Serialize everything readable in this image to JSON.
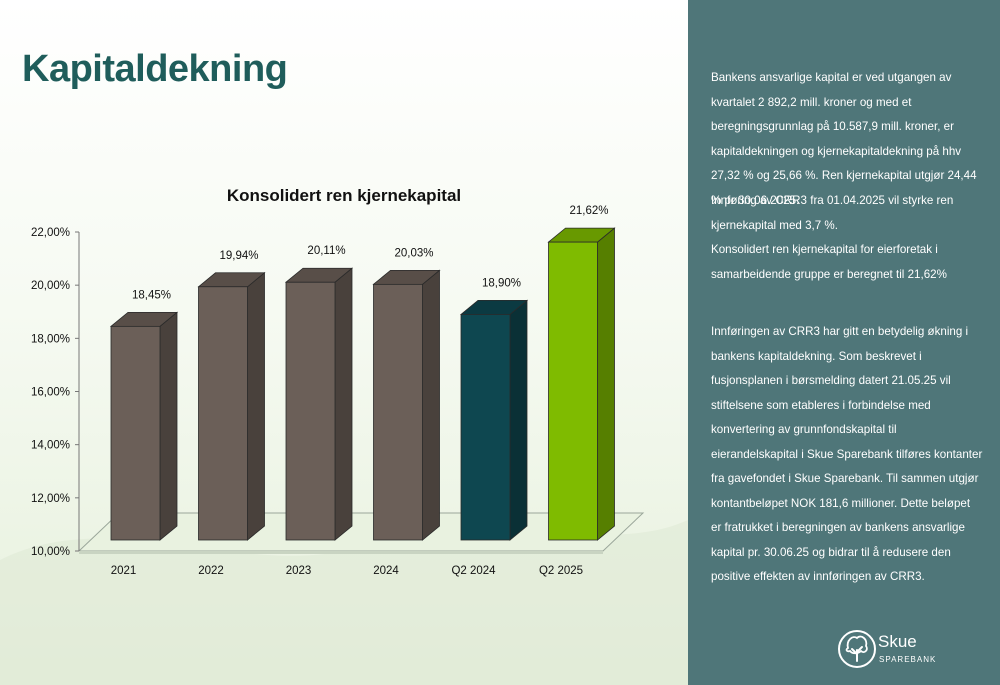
{
  "page": {
    "title": "Kapitaldekning"
  },
  "chart_data": {
    "type": "bar",
    "title": "Konsolidert ren kjernekapital",
    "categories": [
      "2021",
      "2022",
      "2023",
      "2024",
      "Q2 2024",
      "Q2 2025"
    ],
    "values": [
      18.45,
      19.94,
      20.11,
      20.03,
      18.9,
      21.62
    ],
    "value_labels": [
      "18,45%",
      "19,94%",
      "20,11%",
      "20,03%",
      "18,90%",
      "21,62%"
    ],
    "bar_colors": [
      "#6b5f58",
      "#6b5f58",
      "#6b5f58",
      "#6b5f58",
      "#0e4750",
      "#7fbb00"
    ],
    "ylim": [
      10,
      22
    ],
    "yticks": [
      "10,00%",
      "12,00%",
      "14,00%",
      "16,00%",
      "18,00%",
      "20,00%",
      "22,00%"
    ],
    "grid": false,
    "legend": "none",
    "style": "3d-column"
  },
  "sidebar": {
    "paragraphs": [
      "Bankens ansvarlige kapital er ved utgangen av kvartalet 2 892,2 mill. kroner og med et beregningsgrunnlag på 10.587,9 mill. kroner, er kapitaldekningen og kjernekapitaldekning på hhv 27,32 % og 25,66 %. Ren kjernekapital utgjør 24,44 % pr 30.06.2025.",
      "Innføring av CRR3 fra 01.04.2025 vil styrke ren kjernekapital med 3,7 %.",
      "Konsolidert ren kjernekapital for eierforetak i samarbeidende gruppe er beregnet til 21,62%",
      "Innføringen av CRR3 har gitt en betydelig økning i bankens kapitaldekning. Som beskrevet i fusjonsplanen i børsmelding datert 21.05.25 vil stiftelsene som etableres i forbindelse med konvertering av grunnfondskapital til eierandelskapital i Skue Sparebank tilføres kontanter fra gavefondet i Skue Sparebank. Til sammen utgjør kontantbeløpet NOK 181,6 millioner. Dette beløpet er fratrukket i beregningen av bankens ansvarlige kapital pr. 30.06.25 og bidrar til å redusere den positive effekten av innføringen av CRR3."
    ]
  },
  "logo": {
    "name": "Skue",
    "tagline": "SPAREBANK",
    "icon": "tree-icon",
    "color": "#ffffff"
  },
  "colors": {
    "sidebar_bg": "#4f7679",
    "title": "#1f5d5b"
  }
}
